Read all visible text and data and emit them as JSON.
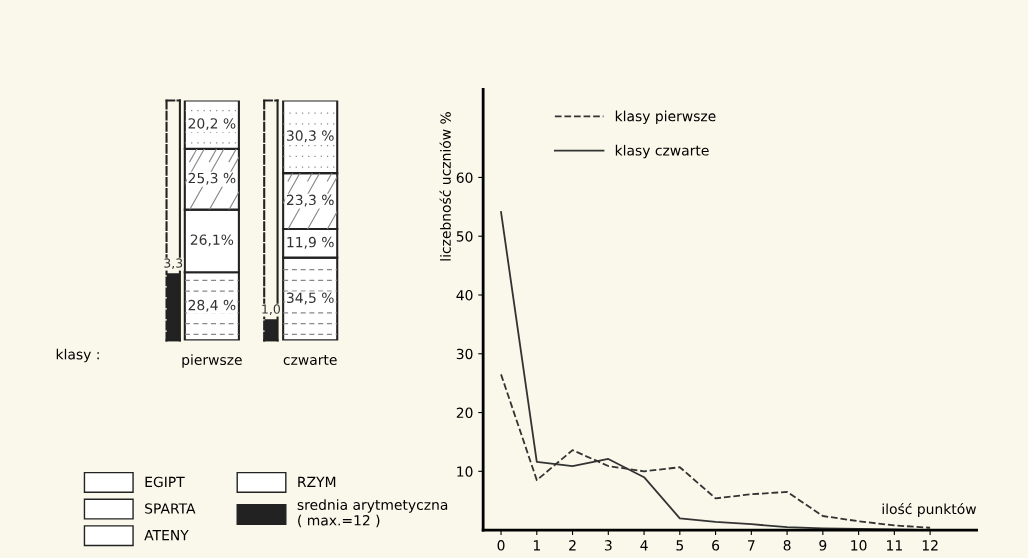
{
  "chart_data": [
    {
      "type": "bar",
      "stacked": true,
      "categories": [
        "pierwsze",
        "czwarte"
      ],
      "xlabel": "klasy :",
      "tick_labels": "x",
      "legend": "bottom",
      "series": [
        {
          "name": "EGIPT",
          "color": "#ffffff",
          "values": [
            28.4,
            34.5
          ],
          "value_labels": [
            "28,4 %",
            "34,5 %"
          ]
        },
        {
          "name": "SPARTA",
          "color": "#ffffff",
          "values": [
            26.1,
            11.9
          ],
          "value_labels": [
            "26,1%",
            "11,9 %"
          ]
        },
        {
          "name": "ATENY",
          "color": "#ffffff",
          "values": [
            25.3,
            23.3
          ],
          "value_labels": [
            "25,3 %",
            "23,3 %"
          ]
        },
        {
          "name": "RZYM",
          "color": "#ffffff",
          "values": [
            20.2,
            30.3
          ],
          "value_labels": [
            "20,2 %",
            "30,3 %"
          ]
        }
      ]
    },
    {
      "type": "bar",
      "categories": [
        null
      ],
      "ylim": [
        0,
        12
      ],
      "tick_labels": false,
      "legend": "bottom",
      "series": [
        {
          "name": "srednia arytmetyczna\n( max.=12 )",
          "color": "#222222",
          "values": [
            3.3
          ],
          "value_labels": [
            "3,3"
          ]
        }
      ]
    },
    {
      "type": "bar",
      "categories": [
        null
      ],
      "ylim": [
        0,
        12
      ],
      "tick_labels": false,
      "series": [
        {
          "color": "#222222",
          "values": [
            1.0
          ],
          "value_labels": [
            "1,0"
          ]
        }
      ]
    },
    {
      "type": "line",
      "x": [
        0,
        1,
        2,
        3,
        4,
        5,
        6,
        7,
        8,
        9,
        10,
        11,
        12
      ],
      "xlabel": "ilość punktów",
      "ylabel": "liczebność uczniów %",
      "xlim": [
        -0.5,
        13.3
      ],
      "ylim": [
        0,
        75
      ],
      "xticks": [
        0,
        1,
        2,
        3,
        4,
        5,
        6,
        7,
        8,
        9,
        10,
        11,
        12
      ],
      "yticks": [
        10,
        20,
        30,
        40,
        50,
        60
      ],
      "legend": "top left",
      "grid": false,
      "series": [
        {
          "name": "klasy pierwsze",
          "color": "#333333",
          "line_style": "dashed",
          "values": [
            26.5,
            8.5,
            13.6,
            10.9,
            10.0,
            10.7,
            5.4,
            6.1,
            6.5,
            2.4,
            1.5,
            0.8,
            0.4
          ]
        },
        {
          "name": "klasy czwarte",
          "color": "#333333",
          "line_style": "solid",
          "values": [
            54.1,
            11.6,
            10.9,
            12.1,
            9.0,
            2.0,
            1.4,
            1.0,
            0.5,
            0.3,
            0.2,
            0.1,
            0.0
          ]
        }
      ]
    }
  ]
}
